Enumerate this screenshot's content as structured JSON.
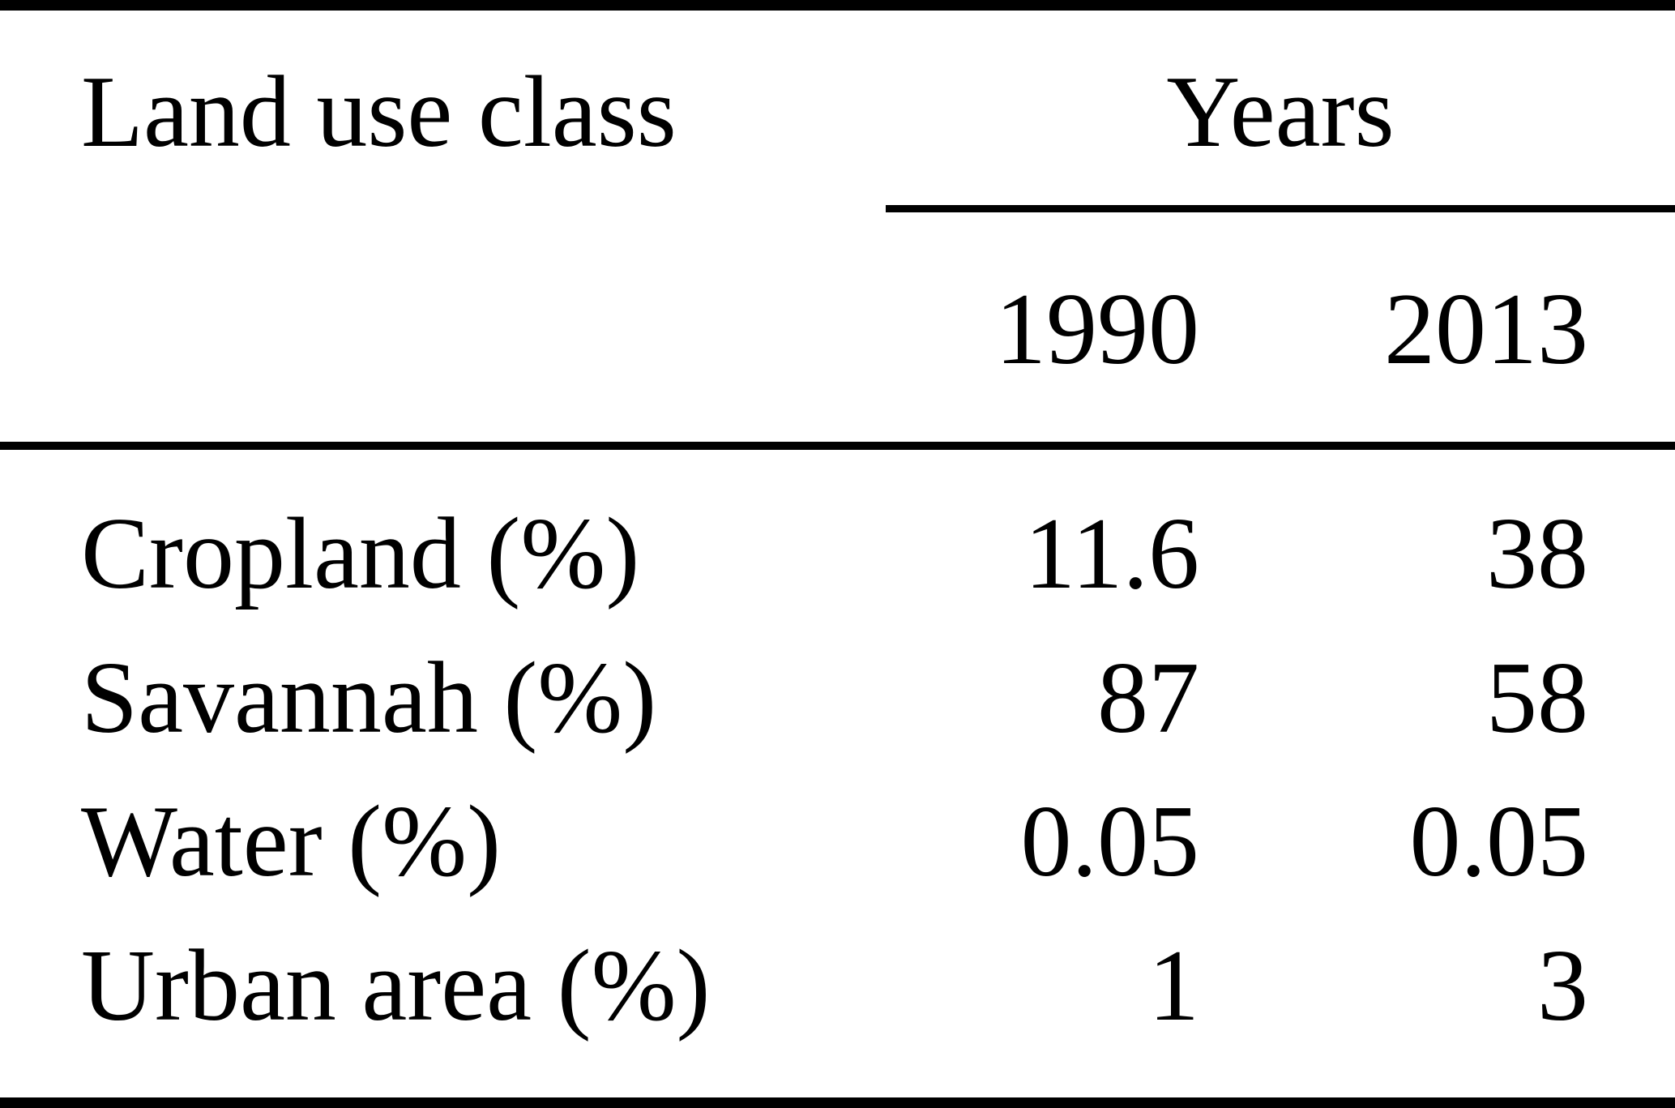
{
  "table": {
    "title_col_header": "Land use class",
    "years_group_label": "Years",
    "year_headers": [
      "1990",
      "2013"
    ],
    "rows": [
      {
        "label": "Cropland (%)",
        "y1990": "11.6",
        "y2013": "38"
      },
      {
        "label": "Savannah (%)",
        "y1990": "87",
        "y2013": "58"
      },
      {
        "label": "Water (%)",
        "y1990": "0.05",
        "y2013": "0.05"
      },
      {
        "label": "Urban area (%)",
        "y1990": "1",
        "y2013": "3"
      }
    ]
  },
  "colors": {
    "text": "#000000",
    "background": "#ffffff",
    "rule": "#000000"
  },
  "chart_data": {
    "type": "table",
    "title": "Land use class percentages by year",
    "columns": [
      "Land use class",
      "1990",
      "2013"
    ],
    "column_group": {
      "label": "Years",
      "spans": [
        "1990",
        "2013"
      ]
    },
    "rows": [
      [
        "Cropland (%)",
        11.6,
        38
      ],
      [
        "Savannah (%)",
        87,
        58
      ],
      [
        "Water (%)",
        0.05,
        0.05
      ],
      [
        "Urban area (%)",
        1,
        3
      ]
    ]
  }
}
